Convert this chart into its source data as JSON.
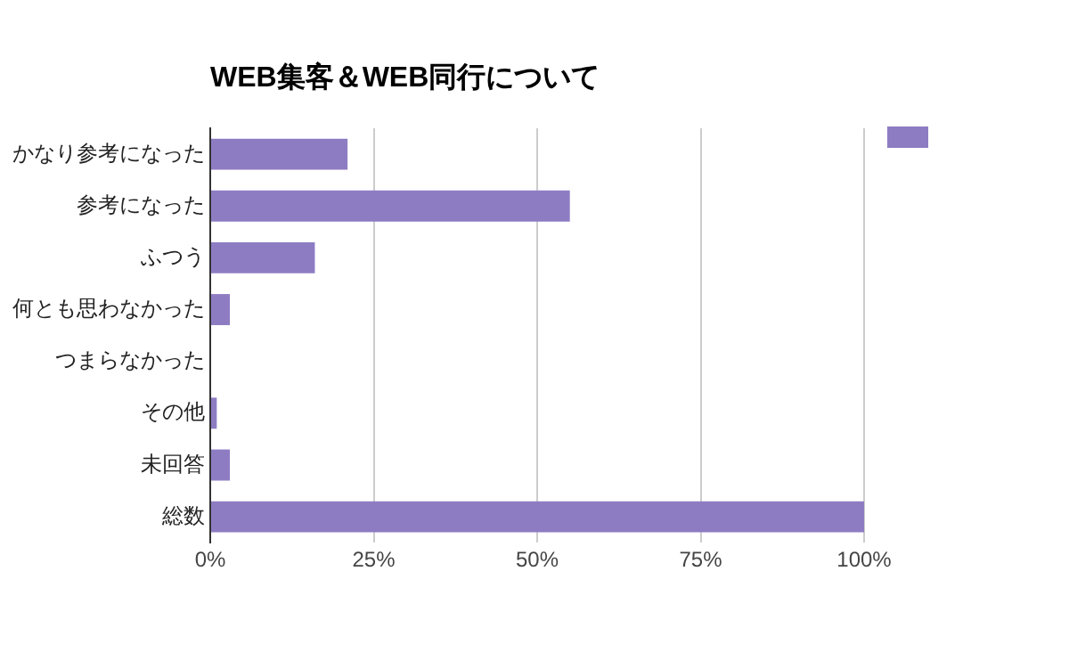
{
  "chart_data": {
    "type": "bar",
    "orientation": "horizontal",
    "title": "WEB集客＆WEB同行について",
    "categories": [
      "かなり参考になった",
      "参考になった",
      "ふつう",
      "何とも思わなかった",
      "つまらなかった",
      "その他",
      "未回答",
      "総数"
    ],
    "series": [
      {
        "color": "#8e7cc3",
        "values": [
          21,
          55,
          16,
          3,
          0,
          1,
          3,
          100
        ]
      }
    ],
    "xlim": [
      0,
      100
    ],
    "xticks": [
      {
        "value": 0,
        "label": "0%"
      },
      {
        "value": 25,
        "label": "25%"
      },
      {
        "value": 50,
        "label": "50%"
      },
      {
        "value": 75,
        "label": "75%"
      },
      {
        "value": 100,
        "label": "100%"
      }
    ],
    "grid": "x"
  }
}
